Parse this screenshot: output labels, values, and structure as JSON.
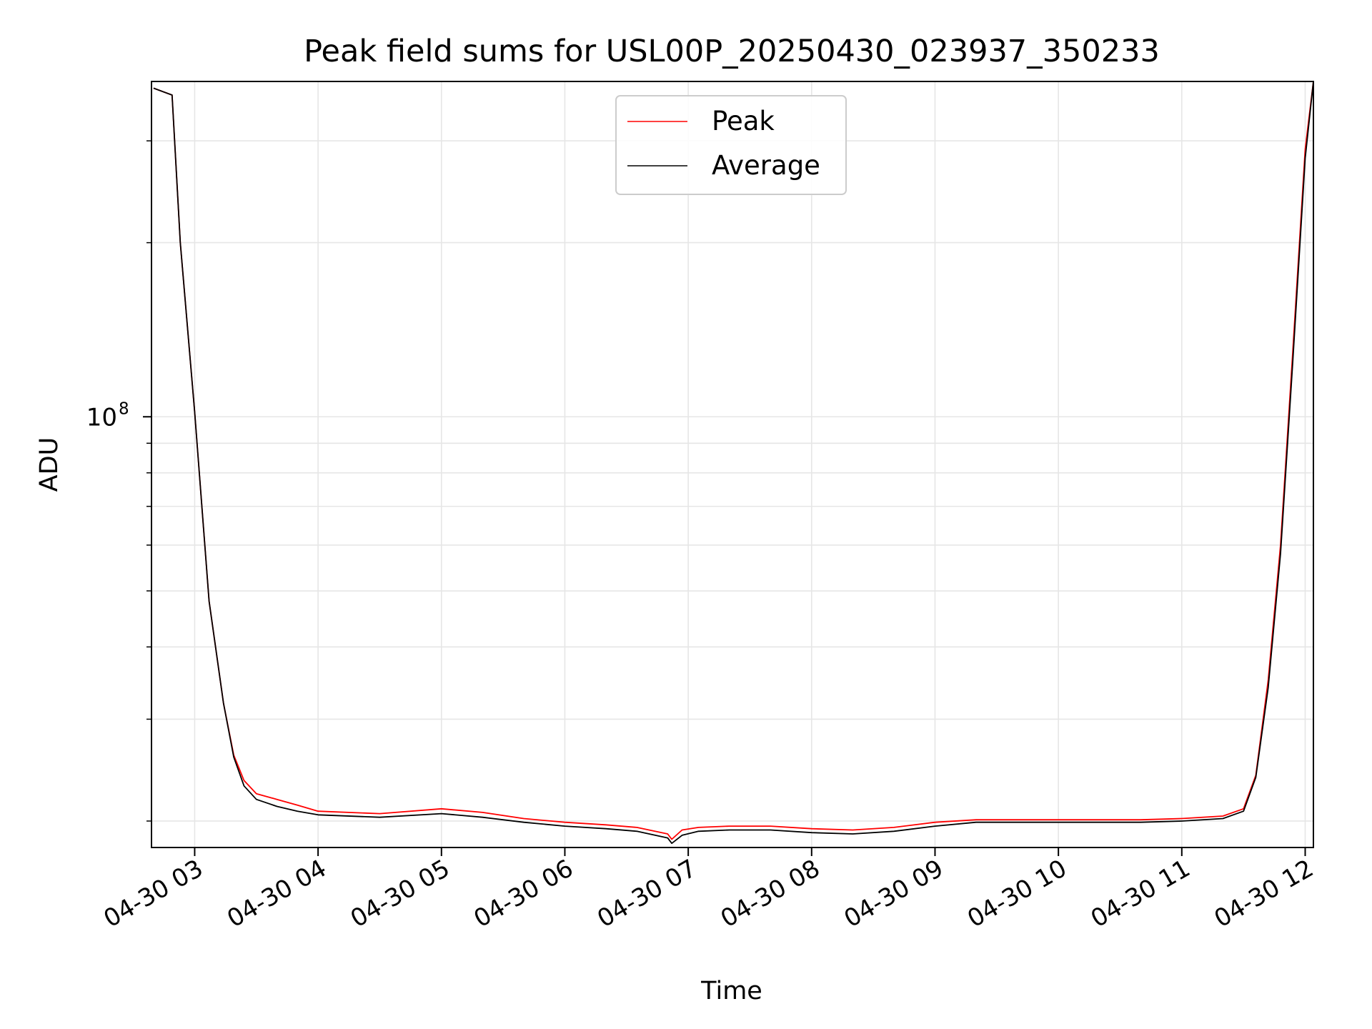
{
  "chart_data": {
    "type": "line",
    "title": "Peak field sums for USL00P_20250430_023937_350233",
    "xlabel": "Time",
    "ylabel": "ADU",
    "yscale": "log",
    "xlim": [
      "2025-04-30 02:39",
      "2025-04-30 12:04"
    ],
    "ylim": [
      18000000,
      380000000
    ],
    "grid": true,
    "legend": {
      "placement": "top-center"
    },
    "x_ticks": [
      "04-30 03",
      "04-30 04",
      "04-30 05",
      "04-30 06",
      "04-30 07",
      "04-30 08",
      "04-30 09",
      "04-30 10",
      "04-30 11",
      "04-30 12"
    ],
    "y_major_ticks": [
      {
        "value": 100000000,
        "label": "10",
        "exponent": "8"
      }
    ],
    "y_minor_ticks": [
      20000000,
      30000000,
      40000000,
      50000000,
      60000000,
      70000000,
      80000000,
      90000000,
      200000000,
      300000000
    ],
    "colors": {
      "peak": "#ff0000",
      "average": "#000000",
      "grid": "#e6e6e6"
    },
    "series": [
      {
        "name": "Peak",
        "x": [
          "2025-04-30 02:40",
          "2025-04-30 02:49",
          "2025-04-30 02:53",
          "2025-04-30 03:00",
          "2025-04-30 03:07",
          "2025-04-30 03:14",
          "2025-04-30 03:19",
          "2025-04-30 03:24",
          "2025-04-30 03:30",
          "2025-04-30 03:40",
          "2025-04-30 03:50",
          "2025-04-30 04:00",
          "2025-04-30 04:30",
          "2025-04-30 05:00",
          "2025-04-30 05:20",
          "2025-04-30 05:40",
          "2025-04-30 06:00",
          "2025-04-30 06:20",
          "2025-04-30 06:35",
          "2025-04-30 06:50",
          "2025-04-30 06:52",
          "2025-04-30 06:57",
          "2025-04-30 07:05",
          "2025-04-30 07:20",
          "2025-04-30 07:40",
          "2025-04-30 08:00",
          "2025-04-30 08:20",
          "2025-04-30 08:40",
          "2025-04-30 09:00",
          "2025-04-30 09:20",
          "2025-04-30 09:40",
          "2025-04-30 10:00",
          "2025-04-30 10:20",
          "2025-04-30 10:40",
          "2025-04-30 11:00",
          "2025-04-30 11:20",
          "2025-04-30 11:30",
          "2025-04-30 11:36",
          "2025-04-30 11:42",
          "2025-04-30 11:48",
          "2025-04-30 11:54",
          "2025-04-30 12:00",
          "2025-04-30 12:04"
        ],
        "y": [
          370000000,
          360000000,
          200000000,
          102000000,
          48000000,
          32000000,
          26000000,
          23500000,
          22300000,
          21800000,
          21300000,
          20800000,
          20600000,
          21000000,
          20700000,
          20200000,
          19900000,
          19700000,
          19500000,
          19000000,
          18600000,
          19300000,
          19500000,
          19600000,
          19600000,
          19400000,
          19300000,
          19500000,
          19900000,
          20100000,
          20100000,
          20100000,
          20100000,
          20100000,
          20200000,
          20400000,
          21000000,
          24000000,
          35000000,
          60000000,
          130000000,
          290000000,
          380000000
        ]
      },
      {
        "name": "Average",
        "x": [
          "2025-04-30 02:40",
          "2025-04-30 02:49",
          "2025-04-30 02:53",
          "2025-04-30 03:00",
          "2025-04-30 03:07",
          "2025-04-30 03:14",
          "2025-04-30 03:19",
          "2025-04-30 03:24",
          "2025-04-30 03:30",
          "2025-04-30 03:40",
          "2025-04-30 03:50",
          "2025-04-30 04:00",
          "2025-04-30 04:30",
          "2025-04-30 05:00",
          "2025-04-30 05:20",
          "2025-04-30 05:40",
          "2025-04-30 06:00",
          "2025-04-30 06:20",
          "2025-04-30 06:35",
          "2025-04-30 06:50",
          "2025-04-30 06:52",
          "2025-04-30 06:57",
          "2025-04-30 07:05",
          "2025-04-30 07:20",
          "2025-04-30 07:40",
          "2025-04-30 08:00",
          "2025-04-30 08:20",
          "2025-04-30 08:40",
          "2025-04-30 09:00",
          "2025-04-30 09:20",
          "2025-04-30 09:40",
          "2025-04-30 10:00",
          "2025-04-30 10:20",
          "2025-04-30 10:40",
          "2025-04-30 11:00",
          "2025-04-30 11:20",
          "2025-04-30 11:30",
          "2025-04-30 11:36",
          "2025-04-30 11:42",
          "2025-04-30 11:48",
          "2025-04-30 11:54",
          "2025-04-30 12:00",
          "2025-04-30 12:04"
        ],
        "y": [
          370000000,
          360000000,
          200000000,
          102000000,
          48000000,
          32000000,
          25800000,
          23000000,
          21800000,
          21200000,
          20800000,
          20500000,
          20300000,
          20600000,
          20300000,
          19900000,
          19600000,
          19400000,
          19200000,
          18700000,
          18300000,
          18900000,
          19200000,
          19300000,
          19300000,
          19100000,
          19000000,
          19200000,
          19600000,
          19900000,
          19900000,
          19900000,
          19900000,
          19900000,
          20000000,
          20200000,
          20800000,
          23800000,
          34000000,
          58000000,
          125000000,
          280000000,
          380000000
        ]
      }
    ]
  }
}
